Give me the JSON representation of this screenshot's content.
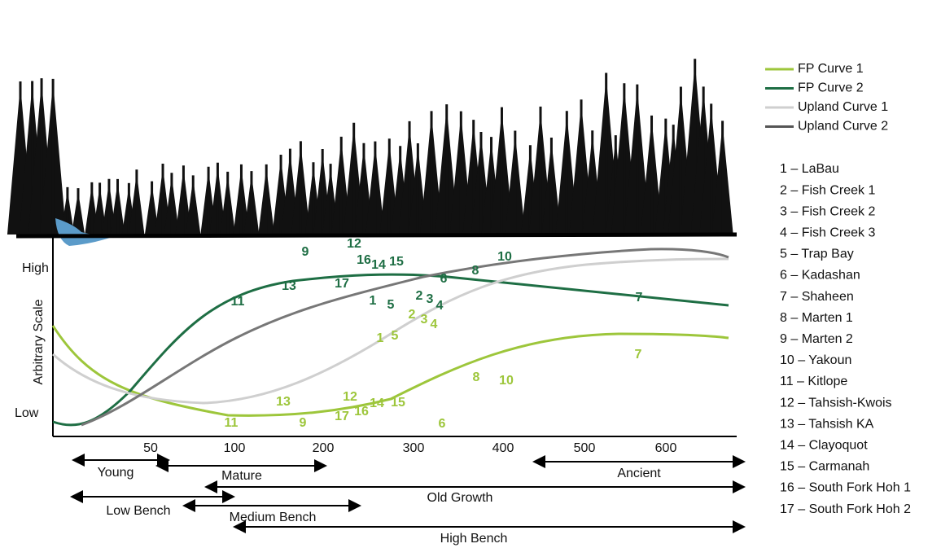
{
  "y_axis": {
    "label": "Arbitrary Scale",
    "high": "High",
    "low": "Low"
  },
  "x_ticks": [
    "50",
    "100",
    "200",
    "300",
    "400",
    "500",
    "600"
  ],
  "periods": [
    "Young",
    "Mature",
    "Ancient",
    "Old Growth",
    "Low Bench",
    "Medium Bench",
    "High Bench"
  ],
  "legend": [
    "FP Curve 1",
    "FP Curve 2",
    "Upland Curve 1",
    "Upland Curve 2"
  ],
  "sites": [
    "1 – LaBau",
    "2 – Fish Creek 1",
    "3 – Fish Creek 2",
    "4 – Fish Creek 3",
    "5 – Trap Bay",
    "6 – Kadashan",
    "7 – Shaheen",
    "8 – Marten 1",
    "9 – Marten 2",
    "10 – Yakoun",
    "11 – Kitlope",
    "12 – Tahsish-Kwois",
    "13 – Tahsish KA",
    "14 – Clayoquot",
    "15 – Carmanah",
    "16 – South Fork Hoh 1",
    "17 – South Fork Hoh 2"
  ],
  "fp2_points": [
    "9",
    "12",
    "16",
    "14",
    "15",
    "13",
    "17",
    "11",
    "1",
    "5",
    "2",
    "3",
    "4",
    "6",
    "8",
    "10",
    "7"
  ],
  "fp1_points": [
    "2",
    "3",
    "4",
    "1",
    "5",
    "8",
    "10",
    "7",
    "13",
    "12",
    "14",
    "15",
    "16",
    "17",
    "11",
    "9",
    "6"
  ]
}
